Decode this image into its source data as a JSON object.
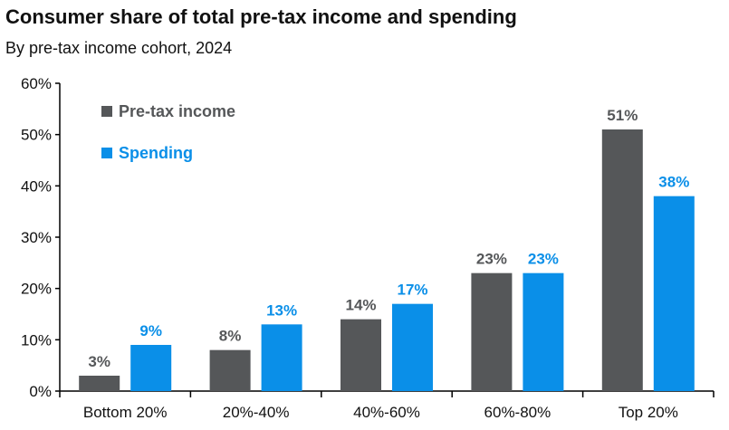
{
  "chart_data": {
    "type": "bar",
    "title": "Consumer share of total pre-tax income and spending",
    "subtitle": "By pre-tax income cohort, 2024",
    "categories": [
      "Bottom 20%",
      "20%-40%",
      "40%-60%",
      "60%-80%",
      "Top 20%"
    ],
    "series": [
      {
        "name": "Pre-tax income",
        "color": "#555759",
        "values": [
          3,
          8,
          14,
          23,
          51
        ],
        "value_labels": [
          "3%",
          "8%",
          "14%",
          "23%",
          "51%"
        ]
      },
      {
        "name": "Spending",
        "color": "#0A8FE8",
        "values": [
          9,
          13,
          17,
          23,
          38
        ],
        "value_labels": [
          "9%",
          "13%",
          "17%",
          "23%",
          "38%"
        ]
      }
    ],
    "ylim": [
      0,
      60
    ],
    "yticks": [
      0,
      10,
      20,
      30,
      40,
      50,
      60
    ],
    "ytick_labels": [
      "0%",
      "10%",
      "20%",
      "30%",
      "40%",
      "50%",
      "60%"
    ],
    "legend_position": "top-left",
    "grid": false
  }
}
